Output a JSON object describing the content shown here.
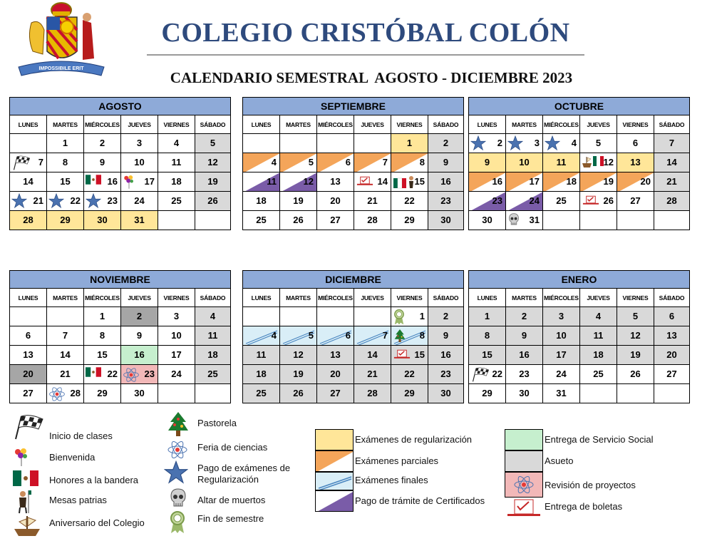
{
  "header": {
    "school_name": "COLEGIO CRISTÓBAL COLÓN",
    "subtitle": "CALENDARIO SEMESTRAL  AGOSTO - DICIEMBRE 2023",
    "logo_motto": "IMPOSSIBILE ERIT"
  },
  "weekdays": [
    "LUNES",
    "MARTES",
    "MIÉRCOLES",
    "JUEVES",
    "VIERNES",
    "SÁBADO"
  ],
  "months": [
    {
      "name": "AGOSTO",
      "rows": [
        [
          {
            "d": ""
          },
          {
            "d": "1"
          },
          {
            "d": "2"
          },
          {
            "d": "3"
          },
          {
            "d": "4"
          },
          {
            "d": "5",
            "bg": "grey"
          }
        ],
        [
          {
            "d": "7",
            "icon": "flag"
          },
          {
            "d": "8"
          },
          {
            "d": "9"
          },
          {
            "d": "10"
          },
          {
            "d": "11"
          },
          {
            "d": "12",
            "bg": "grey"
          }
        ],
        [
          {
            "d": "14"
          },
          {
            "d": "15"
          },
          {
            "d": "16",
            "icon": "mex"
          },
          {
            "d": "17",
            "icon": "balloons"
          },
          {
            "d": "18"
          },
          {
            "d": "19",
            "bg": "grey"
          }
        ],
        [
          {
            "d": "21",
            "icon": "star"
          },
          {
            "d": "22",
            "icon": "star"
          },
          {
            "d": "23",
            "icon": "star"
          },
          {
            "d": "24"
          },
          {
            "d": "25"
          },
          {
            "d": "26",
            "bg": "grey"
          }
        ],
        [
          {
            "d": "28",
            "bg": "yellow"
          },
          {
            "d": "29",
            "bg": "yellow"
          },
          {
            "d": "30",
            "bg": "yellow"
          },
          {
            "d": "31",
            "bg": "yellow"
          },
          {
            "d": ""
          },
          {
            "d": ""
          }
        ]
      ]
    },
    {
      "name": "SEPTIEMBRE",
      "rows": [
        [
          {
            "d": ""
          },
          {
            "d": ""
          },
          {
            "d": ""
          },
          {
            "d": ""
          },
          {
            "d": "1",
            "bg": "yellow"
          },
          {
            "d": "2",
            "bg": "grey"
          }
        ],
        [
          {
            "d": "4",
            "tri": "orange"
          },
          {
            "d": "5",
            "tri": "orange"
          },
          {
            "d": "6",
            "tri": "orange"
          },
          {
            "d": "7",
            "tri": "orange"
          },
          {
            "d": "8",
            "tri": "orange"
          },
          {
            "d": "9",
            "bg": "grey"
          }
        ],
        [
          {
            "d": "11",
            "tri": "purple"
          },
          {
            "d": "12",
            "tri": "purple"
          },
          {
            "d": "13"
          },
          {
            "d": "14",
            "icon": "boleta"
          },
          {
            "d": "15",
            "icon": "mexpatria"
          },
          {
            "d": "16",
            "bg": "grey"
          }
        ],
        [
          {
            "d": "18"
          },
          {
            "d": "19"
          },
          {
            "d": "20"
          },
          {
            "d": "21"
          },
          {
            "d": "22"
          },
          {
            "d": "23",
            "bg": "grey"
          }
        ],
        [
          {
            "d": "25"
          },
          {
            "d": "26"
          },
          {
            "d": "27"
          },
          {
            "d": "28"
          },
          {
            "d": "29"
          },
          {
            "d": "30",
            "bg": "grey"
          }
        ]
      ]
    },
    {
      "name": "OCTUBRE",
      "rows": [
        [
          {
            "d": "2",
            "icon": "star"
          },
          {
            "d": "3",
            "icon": "star"
          },
          {
            "d": "4",
            "icon": "star"
          },
          {
            "d": "5"
          },
          {
            "d": "6"
          },
          {
            "d": "7",
            "bg": "grey"
          }
        ],
        [
          {
            "d": "9",
            "bg": "yellow"
          },
          {
            "d": "10",
            "bg": "yellow"
          },
          {
            "d": "11",
            "bg": "yellow"
          },
          {
            "d": "12",
            "icon": "shipmex"
          },
          {
            "d": "13",
            "bg": "yellow"
          },
          {
            "d": "14",
            "bg": "grey"
          }
        ],
        [
          {
            "d": "16",
            "tri": "orange"
          },
          {
            "d": "17",
            "tri": "orange"
          },
          {
            "d": "18",
            "tri": "orange"
          },
          {
            "d": "19",
            "tri": "orange"
          },
          {
            "d": "20",
            "tri": "orange"
          },
          {
            "d": "21",
            "bg": "grey"
          }
        ],
        [
          {
            "d": "23",
            "tri": "purple"
          },
          {
            "d": "24",
            "tri": "purple"
          },
          {
            "d": "25"
          },
          {
            "d": "26",
            "icon": "boleta"
          },
          {
            "d": "27"
          },
          {
            "d": "28",
            "bg": "grey"
          }
        ],
        [
          {
            "d": "30"
          },
          {
            "d": "31",
            "icon": "skull"
          },
          {
            "d": ""
          },
          {
            "d": ""
          },
          {
            "d": ""
          },
          {
            "d": ""
          }
        ]
      ]
    },
    {
      "name": "NOVIEMBRE",
      "rows": [
        [
          {
            "d": ""
          },
          {
            "d": ""
          },
          {
            "d": "1"
          },
          {
            "d": "2",
            "bg": "dgrey"
          },
          {
            "d": "3"
          },
          {
            "d": "4",
            "bg": "grey"
          }
        ],
        [
          {
            "d": "6"
          },
          {
            "d": "7"
          },
          {
            "d": "8"
          },
          {
            "d": "9"
          },
          {
            "d": "10"
          },
          {
            "d": "11",
            "bg": "grey"
          }
        ],
        [
          {
            "d": "13"
          },
          {
            "d": "14"
          },
          {
            "d": "15"
          },
          {
            "d": "16",
            "bg": "green"
          },
          {
            "d": "17"
          },
          {
            "d": "18",
            "bg": "grey"
          }
        ],
        [
          {
            "d": "20",
            "bg": "dgrey"
          },
          {
            "d": "21"
          },
          {
            "d": "22",
            "icon": "mex"
          },
          {
            "d": "23",
            "bg": "pink",
            "icon": "atom"
          },
          {
            "d": "24"
          },
          {
            "d": "25",
            "bg": "grey"
          }
        ],
        [
          {
            "d": "27"
          },
          {
            "d": "28",
            "icon": "atom"
          },
          {
            "d": "29"
          },
          {
            "d": "30"
          },
          {
            "d": ""
          },
          {
            "d": ""
          }
        ]
      ]
    },
    {
      "name": "DICIEMBRE",
      "rows": [
        [
          {
            "d": ""
          },
          {
            "d": ""
          },
          {
            "d": ""
          },
          {
            "d": ""
          },
          {
            "d": "1",
            "icon": "medal"
          },
          {
            "d": "2",
            "bg": "grey"
          }
        ],
        [
          {
            "d": "4",
            "tri": "blue"
          },
          {
            "d": "5",
            "tri": "blue"
          },
          {
            "d": "6",
            "tri": "blue"
          },
          {
            "d": "7",
            "tri": "blue"
          },
          {
            "d": "8",
            "tri": "blue",
            "icon": "tree"
          },
          {
            "d": "9",
            "bg": "grey"
          }
        ],
        [
          {
            "d": "11",
            "bg": "grey"
          },
          {
            "d": "12",
            "bg": "grey"
          },
          {
            "d": "13",
            "bg": "grey"
          },
          {
            "d": "14",
            "bg": "grey"
          },
          {
            "d": "15",
            "bg": "grey",
            "icon": "boleta"
          },
          {
            "d": "16",
            "bg": "grey"
          }
        ],
        [
          {
            "d": "18",
            "bg": "grey"
          },
          {
            "d": "19",
            "bg": "grey"
          },
          {
            "d": "20",
            "bg": "grey"
          },
          {
            "d": "21",
            "bg": "grey"
          },
          {
            "d": "22",
            "bg": "grey"
          },
          {
            "d": "23",
            "bg": "grey"
          }
        ],
        [
          {
            "d": "25",
            "bg": "grey"
          },
          {
            "d": "26",
            "bg": "grey"
          },
          {
            "d": "27",
            "bg": "grey"
          },
          {
            "d": "28",
            "bg": "grey"
          },
          {
            "d": "29",
            "bg": "grey"
          },
          {
            "d": "30",
            "bg": "grey"
          }
        ]
      ]
    },
    {
      "name": "ENERO",
      "rows": [
        [
          {
            "d": "1",
            "bg": "grey"
          },
          {
            "d": "2",
            "bg": "grey"
          },
          {
            "d": "3",
            "bg": "grey"
          },
          {
            "d": "4",
            "bg": "grey"
          },
          {
            "d": "5",
            "bg": "grey"
          },
          {
            "d": "6",
            "bg": "grey"
          }
        ],
        [
          {
            "d": "8",
            "bg": "grey"
          },
          {
            "d": "9",
            "bg": "grey"
          },
          {
            "d": "10",
            "bg": "grey"
          },
          {
            "d": "11",
            "bg": "grey"
          },
          {
            "d": "12",
            "bg": "grey"
          },
          {
            "d": "13",
            "bg": "grey"
          }
        ],
        [
          {
            "d": "15",
            "bg": "grey"
          },
          {
            "d": "16",
            "bg": "grey"
          },
          {
            "d": "17",
            "bg": "grey"
          },
          {
            "d": "18",
            "bg": "grey"
          },
          {
            "d": "19",
            "bg": "grey"
          },
          {
            "d": "20",
            "bg": "grey"
          }
        ],
        [
          {
            "d": "22",
            "icon": "flag"
          },
          {
            "d": "23"
          },
          {
            "d": "24"
          },
          {
            "d": "25"
          },
          {
            "d": "26"
          },
          {
            "d": "27"
          }
        ],
        [
          {
            "d": "29"
          },
          {
            "d": "30"
          },
          {
            "d": "31"
          },
          {
            "d": ""
          },
          {
            "d": ""
          },
          {
            "d": ""
          }
        ]
      ]
    }
  ],
  "legend": {
    "inicio": "Inicio de clases",
    "bienvenida": "Bienvenida",
    "honores": "Honores a la bandera",
    "patrias": "Mesas patrias",
    "aniversario": "Aniversario del Colegio",
    "pastorela": "Pastorela",
    "feria": "Feria de ciencias",
    "pago_examenes": "Pago de exámenes de Regularización",
    "altar": "Altar de muertos",
    "fin": "Fin de semestre",
    "ex_regularizacion": "Exámenes de regularización",
    "ex_parciales": "Exámenes parciales",
    "ex_finales": "Exámenes finales",
    "pago_certificados": "Pago de trámite de Certificados",
    "servicio_social": "Entrega de Servicio Social",
    "asueto": "Asueto",
    "revision": "Revisión de proyectos",
    "boletas": "Entrega de boletas"
  },
  "colors": {
    "header_blue": "#8eaad8",
    "title_blue": "#2e4a7d",
    "yellow": "#ffe699",
    "orange": "#f4a55a",
    "purple": "#7a5ca8",
    "light_blue": "#d9eef7",
    "green": "#c6efce",
    "grey": "#d9d9d9",
    "dark_grey": "#a6a6a6",
    "pink": "#f2b8b8",
    "star": "#4a72b0"
  }
}
